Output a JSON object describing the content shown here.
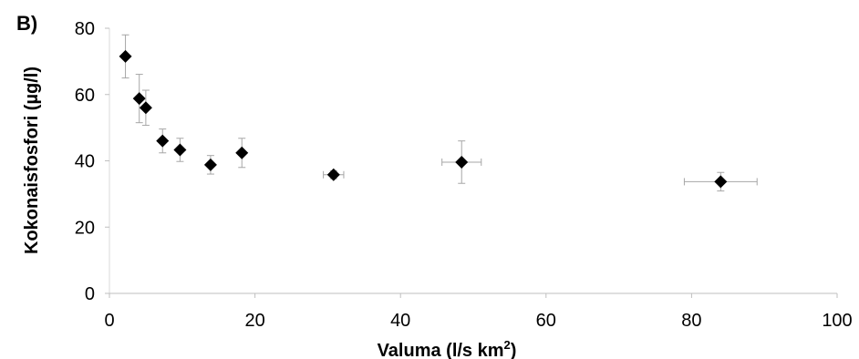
{
  "chart_data": {
    "type": "scatter",
    "panel_label": "B)",
    "xlabel": "Valuma (l/s km",
    "xlabel_sup": "2",
    "xlabel_end": ")",
    "ylabel": "Kokonaisfosfori (µg/l)",
    "xlim": [
      0,
      100
    ],
    "ylim": [
      0,
      80
    ],
    "x_ticks": [
      0,
      20,
      40,
      60,
      80,
      100
    ],
    "y_ticks": [
      0,
      20,
      40,
      60,
      80
    ],
    "grid": false,
    "legend": "none",
    "marker": "diamond",
    "marker_color": "#000000",
    "errorbar_color": "#a6a6a6",
    "points": [
      {
        "x": 2.2,
        "y": 71.5,
        "yerr": 6.5,
        "xerr": 0
      },
      {
        "x": 4.1,
        "y": 58.8,
        "yerr": 7.3,
        "xerr": 0
      },
      {
        "x": 5.0,
        "y": 56.0,
        "yerr": 5.3,
        "xerr": 0
      },
      {
        "x": 7.3,
        "y": 46.0,
        "yerr": 3.6,
        "xerr": 0
      },
      {
        "x": 9.7,
        "y": 43.3,
        "yerr": 3.5,
        "xerr": 0
      },
      {
        "x": 13.9,
        "y": 38.8,
        "yerr": 2.8,
        "xerr": 0
      },
      {
        "x": 18.2,
        "y": 42.4,
        "yerr": 4.4,
        "xerr": 0
      },
      {
        "x": 30.8,
        "y": 35.8,
        "yerr": 1.2,
        "xerr": 1.4
      },
      {
        "x": 48.4,
        "y": 39.6,
        "yerr": 6.4,
        "xerr": 2.7
      },
      {
        "x": 84.0,
        "y": 33.7,
        "yerr": 2.8,
        "xerr": 5.0
      }
    ]
  }
}
